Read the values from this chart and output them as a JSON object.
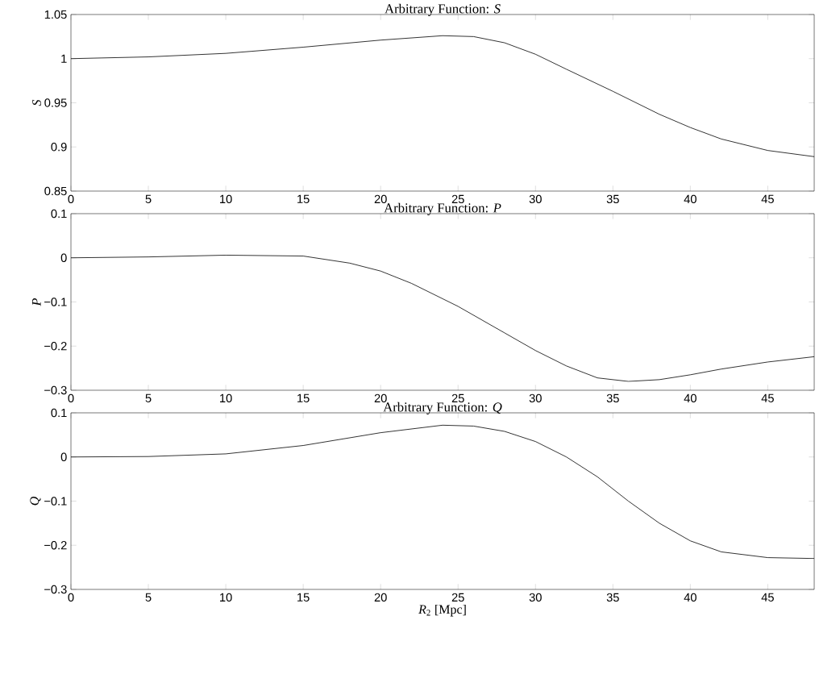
{
  "chart_data": [
    {
      "type": "line",
      "title": "Arbitrary Function: *S*",
      "ylabel": "*S*",
      "x": [
        0,
        5,
        10,
        15,
        20,
        24,
        26,
        28,
        30,
        32,
        35,
        38,
        40,
        42,
        45,
        48
      ],
      "series": [
        {
          "color": "#000000",
          "values": [
            1.0,
            1.002,
            1.006,
            1.013,
            1.021,
            1.026,
            1.025,
            1.018,
            1.005,
            0.988,
            0.963,
            0.937,
            0.922,
            0.909,
            0.896,
            0.889
          ]
        }
      ],
      "xlim": [
        0,
        48
      ],
      "ylim": [
        0.85,
        1.05
      ],
      "xticks": [
        0,
        5,
        10,
        15,
        20,
        25,
        30,
        35,
        40,
        45
      ],
      "yticks": [
        0.85,
        0.9,
        0.95,
        1,
        1.05
      ]
    },
    {
      "type": "line",
      "title": "Arbitrary Function: *P*",
      "ylabel": "*P*",
      "x": [
        0,
        5,
        10,
        15,
        18,
        20,
        22,
        25,
        28,
        30,
        32,
        34,
        36,
        38,
        40,
        42,
        45,
        48
      ],
      "series": [
        {
          "color": "#000000",
          "values": [
            0,
            0.002,
            0.006,
            0.004,
            -0.012,
            -0.03,
            -0.058,
            -0.11,
            -0.17,
            -0.21,
            -0.245,
            -0.272,
            -0.28,
            -0.276,
            -0.265,
            -0.252,
            -0.236,
            -0.224
          ]
        }
      ],
      "xlim": [
        0,
        48
      ],
      "ylim": [
        -0.3,
        0.1
      ],
      "xticks": [
        0,
        5,
        10,
        15,
        20,
        25,
        30,
        35,
        40,
        45
      ],
      "yticks": [
        {
          "value": -0.3,
          "label": "−0.3"
        },
        {
          "value": -0.2,
          "label": "−0.2"
        },
        {
          "value": -0.1,
          "label": "−0.1"
        },
        0,
        0.1
      ]
    },
    {
      "type": "line",
      "title": "Arbitrary Function: *Q*",
      "ylabel": "*Q*",
      "xlabel": "*R*$_{2}$ [Mpc]",
      "x": [
        0,
        5,
        10,
        15,
        20,
        24,
        26,
        28,
        30,
        32,
        34,
        36,
        38,
        40,
        42,
        45,
        48
      ],
      "series": [
        {
          "color": "#000000",
          "values": [
            0,
            0.001,
            0.007,
            0.026,
            0.055,
            0.072,
            0.07,
            0.058,
            0.035,
            0.0,
            -0.045,
            -0.1,
            -0.15,
            -0.19,
            -0.215,
            -0.228,
            -0.23
          ]
        }
      ],
      "xlim": [
        0,
        48
      ],
      "ylim": [
        -0.3,
        0.1
      ],
      "xticks": [
        0,
        5,
        10,
        15,
        20,
        25,
        30,
        35,
        40,
        45
      ],
      "yticks": [
        {
          "value": -0.3,
          "label": "−0.3"
        },
        {
          "value": -0.2,
          "label": "−0.2"
        },
        {
          "value": -0.1,
          "label": "−0.1"
        },
        0,
        0.1
      ]
    }
  ]
}
